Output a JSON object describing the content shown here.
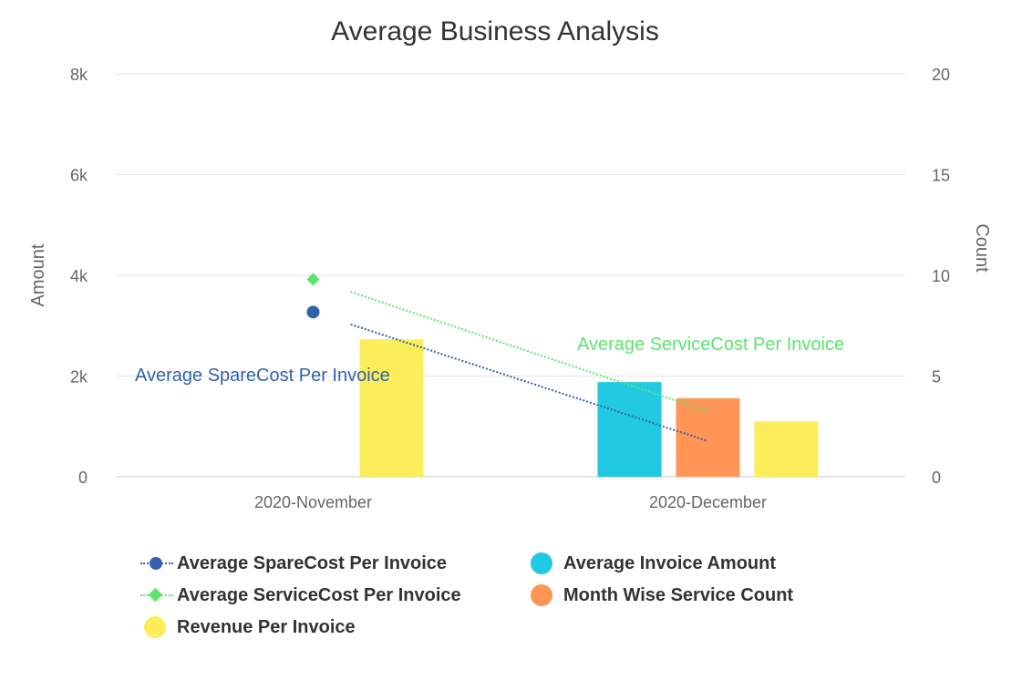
{
  "chart_data": {
    "type": "bar",
    "title": "Average Business Analysis",
    "categories": [
      "2020-November",
      "2020-December"
    ],
    "y_left": {
      "label": "Amount",
      "ylim": [
        0,
        8000
      ],
      "ticks": [
        0,
        2000,
        4000,
        6000,
        8000
      ],
      "tick_labels": [
        "0",
        "2k",
        "4k",
        "6k",
        "8k"
      ]
    },
    "y_right": {
      "label": "Count",
      "ylim": [
        0,
        20
      ],
      "ticks": [
        0,
        5,
        10,
        15,
        20
      ],
      "tick_labels": [
        "0",
        "5",
        "10",
        "15",
        "20"
      ]
    },
    "grid": true,
    "legend_position": "bottom",
    "series": [
      {
        "name": "Average SpareCost Per Invoice",
        "kind": "line-marker",
        "marker": "circle",
        "color": "#3461ab",
        "axis": "left",
        "values": [
          3270,
          710
        ],
        "data_label": "Average SpareCost Per Invoice"
      },
      {
        "name": "Average ServiceCost Per Invoice",
        "kind": "line-marker",
        "marker": "diamond",
        "color": "#5ce56b",
        "axis": "left",
        "values": [
          3920,
          1300
        ],
        "data_label": "Average ServiceCost Per Invoice"
      },
      {
        "name": "Average Invoice Amount",
        "kind": "bar",
        "color": "#22c9e2",
        "axis": "left",
        "values": [
          null,
          1880
        ]
      },
      {
        "name": "Month Wise Service Count",
        "kind": "bar",
        "color": "#ff9655",
        "axis": "right",
        "values": [
          null,
          3.9
        ]
      },
      {
        "name": "Revenue Per Invoice",
        "kind": "bar",
        "color": "#fcee5b",
        "axis": "left",
        "values": [
          2730,
          1100
        ]
      }
    ]
  },
  "legend": {
    "items": [
      {
        "label": "Average SpareCost Per Invoice",
        "symbol": "line-circle",
        "color": "#3461ab"
      },
      {
        "label": "Average Invoice Amount",
        "symbol": "circle",
        "color": "#22c9e2"
      },
      {
        "label": "Average ServiceCost Per Invoice",
        "symbol": "line-diamond",
        "color": "#5ce56b"
      },
      {
        "label": "Month Wise Service Count",
        "symbol": "circle",
        "color": "#ff9655"
      },
      {
        "label": "Revenue Per Invoice",
        "symbol": "circle",
        "color": "#fcee5b"
      }
    ]
  }
}
